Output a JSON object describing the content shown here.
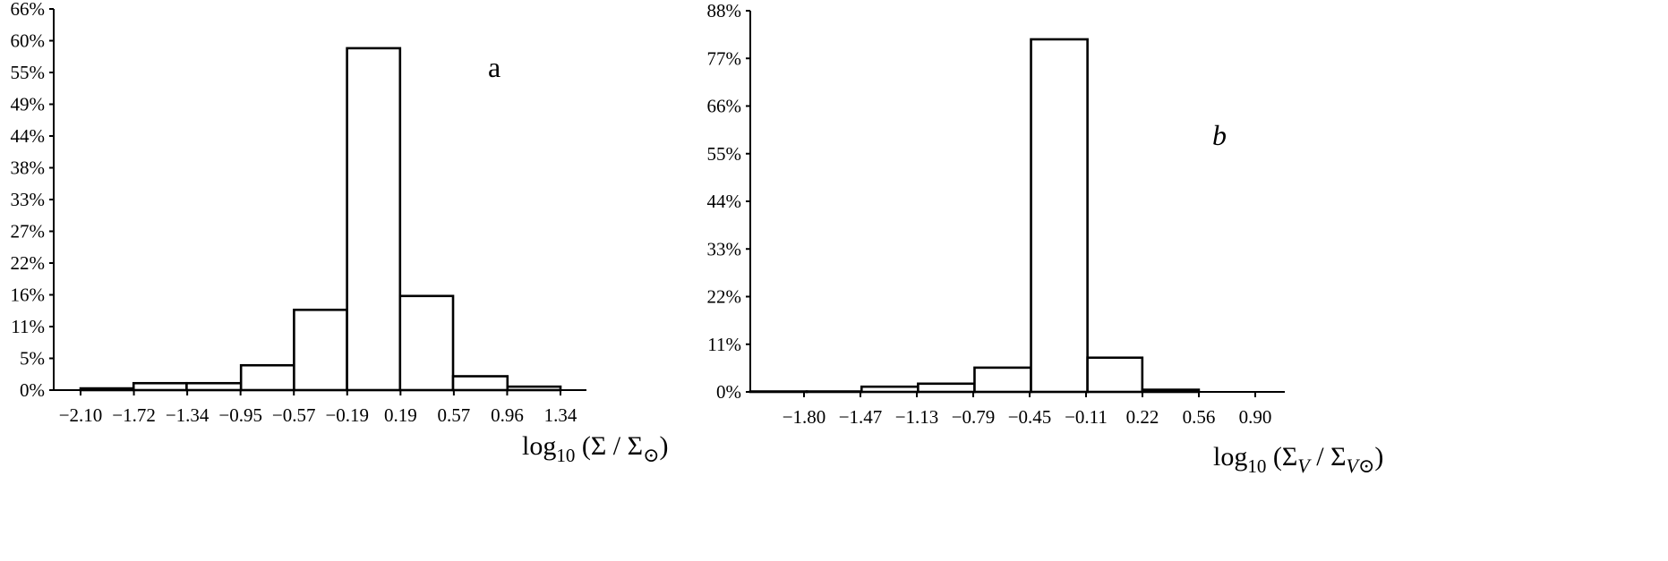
{
  "chart_data": [
    {
      "type": "bar",
      "panel_label": "a",
      "xlabel_parts": {
        "base": "log",
        "sub": "10",
        "open": " (Σ / Σ",
        "sub2": "⊙",
        "close": ")"
      },
      "x_tick_labels": [
        "−2.10",
        "−1.72",
        "−1.34",
        "−0.95",
        "−0.57",
        "−0.19",
        "0.19",
        "0.57",
        "0.96",
        "1.34"
      ],
      "y_tick_labels": [
        "0%",
        "5%",
        "11%",
        "16%",
        "22%",
        "27%",
        "33%",
        "38%",
        "44%",
        "49%",
        "55%",
        "60%",
        "66%"
      ],
      "ylim": [
        0,
        66
      ],
      "bin_edges": [
        -2.1,
        -1.72,
        -1.34,
        -0.95,
        -0.57,
        -0.19,
        0.19,
        0.57,
        0.96,
        1.34
      ],
      "values": [
        0.3,
        1.2,
        1.2,
        4.3,
        13.9,
        59.2,
        16.3,
        2.4,
        0.6
      ],
      "grid": false,
      "legend": "none"
    },
    {
      "type": "bar",
      "panel_label": "b",
      "xlabel_parts": {
        "base": "log",
        "sub": "10",
        "open": " (Σ",
        "sub1": "V",
        "mid": " / Σ",
        "sub2": "V⊙",
        "close": ")"
      },
      "x_tick_labels": [
        "−1.80",
        "−1.47",
        "−1.13",
        "−0.79",
        "−0.45",
        "−0.11",
        "0.22",
        "0.56",
        "0.90"
      ],
      "y_tick_labels": [
        "0%",
        "11%",
        "22%",
        "33%",
        "44%",
        "55%",
        "66%",
        "77%",
        "88%"
      ],
      "ylim": [
        0,
        88
      ],
      "bin_edges": [
        -2.14,
        -1.8,
        -1.47,
        -1.13,
        -0.79,
        -0.45,
        -0.11,
        0.22,
        0.56,
        0.9
      ],
      "values": [
        0.1,
        0.1,
        1.2,
        1.9,
        5.6,
        81.4,
        7.9,
        0.5,
        0.0
      ],
      "grid": false,
      "legend": "none"
    }
  ]
}
